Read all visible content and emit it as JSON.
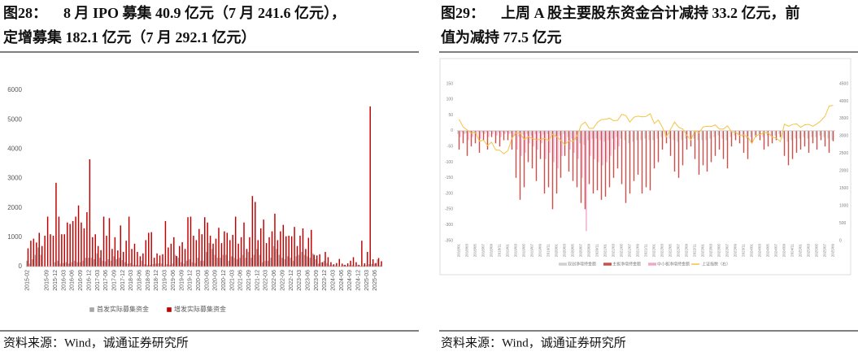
{
  "figures": [
    {
      "label": "图28：",
      "title_lines": [
        "8 月 IPO 募集 40.9 亿元（7 月 241.6 亿元），",
        "定增募集 182.1 亿元（7 月 292.1 亿元）"
      ],
      "source": "资料来源：Wind，诚通证券研究所"
    },
    {
      "label": "图29：",
      "title_lines": [
        "上周 A 股主要股东资金合计减持 33.2 亿元，前",
        "值为减持 77.5 亿元"
      ],
      "source": "资料来源：Wind，诚通证券研究所"
    }
  ],
  "chart_data": [
    {
      "type": "bar",
      "grid": false,
      "legend": "bottom",
      "categories": [
        "2015-02",
        null,
        null,
        null,
        null,
        null,
        null,
        "2015-09",
        null,
        null,
        "2015-12",
        null,
        null,
        "2016-03",
        null,
        null,
        "2016-06",
        null,
        null,
        "2016-09",
        null,
        null,
        "2016-12",
        null,
        null,
        "2017-03",
        null,
        null,
        "2017-06",
        null,
        null,
        "2017-09",
        null,
        null,
        "2017-12",
        null,
        null,
        "2018-03",
        null,
        null,
        "2018-06",
        null,
        null,
        "2018-09",
        null,
        null,
        "2018-12",
        null,
        null,
        "2019-03",
        null,
        null,
        "2019-06",
        null,
        null,
        "2019-09",
        null,
        null,
        "2019-12",
        null,
        null,
        "2020-03",
        null,
        null,
        "2020-06",
        null,
        null,
        "2020-09",
        null,
        null,
        "2020-12",
        null,
        null,
        "2021-03",
        null,
        null,
        "2021-06",
        null,
        null,
        "2021-09",
        null,
        null,
        "2021-12",
        null,
        null,
        "2022-03",
        null,
        null,
        "2022-06",
        null,
        null,
        "2022-09",
        null,
        null,
        "2022-12",
        null,
        null,
        "2023-03",
        null,
        null,
        "2023-06",
        null,
        null,
        "2023-09",
        null,
        null,
        "2023-12",
        null,
        null,
        "2024-03",
        null,
        null,
        "2024-06",
        null,
        null,
        "2024-09",
        null,
        null,
        "2024-12",
        null,
        null,
        "2025-03",
        null,
        null,
        "2025-06",
        null,
        null
      ],
      "series": [
        {
          "name": "首发实际募集资金",
          "color": "#a6a6a6",
          "values": [
            200,
            100,
            250,
            400,
            650,
            400,
            0,
            0,
            0,
            0,
            150,
            200,
            100,
            120,
            150,
            100,
            150,
            200,
            150,
            150,
            200,
            300,
            300,
            300,
            250,
            450,
            300,
            200,
            180,
            250,
            200,
            350,
            250,
            300,
            220,
            150,
            100,
            120,
            60,
            60,
            50,
            200,
            80,
            60,
            60,
            80,
            100,
            110,
            100,
            40,
            80,
            60,
            100,
            400,
            300,
            150,
            100,
            200,
            250,
            150,
            120,
            300,
            200,
            200,
            500,
            800,
            600,
            400,
            300,
            300,
            400,
            400,
            200,
            350,
            300,
            250,
            300,
            400,
            300,
            500,
            300,
            400,
            600,
            400,
            150,
            200,
            200,
            300,
            700,
            600,
            400,
            300,
            250,
            350,
            300,
            200,
            350,
            400,
            500,
            400,
            350,
            300,
            450,
            250,
            100,
            150,
            200,
            120,
            50,
            50,
            40,
            20,
            20,
            60,
            30,
            50,
            50,
            30,
            60,
            30,
            40,
            50,
            80,
            90,
            100,
            241.6,
            40.9
          ]
        },
        {
          "name": "增发实际募集资金",
          "color": "#c00000",
          "values": [
            620,
            880,
            950,
            820,
            1150,
            700,
            1050,
            1700,
            1100,
            1050,
            2850,
            1700,
            1100,
            1100,
            1500,
            1450,
            1550,
            1700,
            2080,
            1500,
            1300,
            1850,
            3650,
            1000,
            1100,
            700,
            560,
            1700,
            1050,
            1650,
            600,
            1000,
            550,
            1400,
            500,
            880,
            1700,
            600,
            780,
            500,
            350,
            450,
            900,
            1150,
            1170,
            300,
            450,
            380,
            420,
            1550,
            650,
            780,
            1000,
            360,
            700,
            830,
            600,
            1680,
            1700,
            1050,
            900,
            1280,
            1100,
            1680,
            1500,
            1050,
            780,
            950,
            1320,
            800,
            1200,
            1150,
            900,
            1080,
            1700,
            780,
            1000,
            1500,
            600,
            1000,
            2400,
            2200,
            900,
            1300,
            1600,
            800,
            1000,
            1200,
            1800,
            900,
            1200,
            1420,
            1030,
            1050,
            1030,
            1350,
            700,
            1050,
            1300,
            600,
            980,
            1250,
            400,
            380,
            420,
            150,
            500,
            320,
            150,
            80,
            120,
            260,
            100,
            60,
            110,
            200,
            320,
            150,
            60,
            880,
            110,
            500,
            5450,
            250,
            120,
            292.1,
            182.1
          ]
        }
      ],
      "ylim": [
        0,
        6000
      ],
      "yticks": [
        0,
        1000,
        2000,
        3000,
        4000,
        5000,
        6000
      ]
    },
    {
      "type": "combo",
      "grid": false,
      "legend": "bottom",
      "categories": [
        "2018/01",
        null,
        "2018/03",
        null,
        "2018/05",
        null,
        "2018/07",
        null,
        "2018/09",
        null,
        "2018/11",
        null,
        "2019/01",
        null,
        "2019/03",
        null,
        "2019/05",
        null,
        "2019/07",
        null,
        "2019/09",
        null,
        "2019/11",
        null,
        "2020/01",
        null,
        "2020/03",
        null,
        "2020/05",
        null,
        "2020/07",
        null,
        "2020/09",
        null,
        "2020/11",
        null,
        "2021/01",
        null,
        "2021/03",
        null,
        "2021/05",
        null,
        "2021/07",
        null,
        "2021/09",
        null,
        "2021/11",
        null,
        "2022/01",
        null,
        "2022/03",
        null,
        "2022/05",
        null,
        "2022/07",
        null,
        "2022/09",
        null,
        "2022/11",
        null,
        "2023/01",
        null,
        "2023/03",
        null,
        "2023/05",
        null,
        "2023/07",
        null,
        "2023/09",
        null,
        "2023/11",
        null,
        "2024/01",
        null,
        "2024/03",
        null,
        "2024/05",
        null,
        "2024/07",
        null,
        "2024/09",
        null,
        "2024/11",
        null,
        "2025/01",
        null,
        "2025/03",
        null,
        "2025/05",
        null,
        "2025/07",
        null,
        "2025/09"
      ],
      "series": [
        {
          "name": "双创净增持金额",
          "color": "#d0d0d0",
          "kind": "bar",
          "values": [
            -10,
            -5,
            -8,
            -6,
            -5,
            -4,
            -6,
            -5,
            -3,
            -4,
            -6,
            -5,
            -5,
            -8,
            -15,
            -20,
            -12,
            -10,
            -15,
            -10,
            -8,
            -12,
            -10,
            -15,
            -20,
            -15,
            -10,
            -20,
            -25,
            -30,
            -40,
            -45,
            -30,
            -25,
            -25,
            -30,
            -35,
            -30,
            -25,
            -20,
            -25,
            -30,
            -40,
            -35,
            -30,
            -30,
            -25,
            -30,
            -30,
            -25,
            -20,
            -20,
            -25,
            -30,
            -35,
            -30,
            -25,
            -20,
            -25,
            -30,
            -30,
            -30,
            -25,
            -20,
            -15,
            -25,
            -30,
            -20,
            -15,
            -15,
            -20,
            -25,
            -20,
            -15,
            -15,
            -20,
            -15,
            -15,
            -15,
            -10,
            -25,
            -35,
            -30,
            -25,
            -25,
            -20,
            -25,
            -20,
            -20,
            -15,
            -20,
            -25,
            -30
          ]
        },
        {
          "name": "主板净增持金额",
          "color": "#c9504b",
          "kind": "bar",
          "values": [
            -60,
            -40,
            -80,
            -50,
            -40,
            -70,
            -30,
            -60,
            -20,
            -40,
            -50,
            -30,
            -30,
            -60,
            -150,
            -220,
            -180,
            -100,
            -120,
            -160,
            -90,
            -200,
            -180,
            -250,
            -200,
            -150,
            -80,
            -130,
            -160,
            -180,
            -230,
            -250,
            -170,
            -200,
            -190,
            -220,
            -210,
            -180,
            -150,
            -120,
            -170,
            -230,
            -200,
            -160,
            -140,
            -200,
            -180,
            -190,
            -120,
            -100,
            -60,
            -40,
            -80,
            -130,
            -150,
            -110,
            -60,
            -50,
            -90,
            -140,
            -110,
            -130,
            -100,
            -80,
            -60,
            -90,
            -120,
            -50,
            -30,
            -40,
            -70,
            -90,
            -40,
            -20,
            -30,
            -60,
            -50,
            -40,
            -30,
            -20,
            -80,
            -110,
            -90,
            -70,
            -60,
            -50,
            -70,
            -40,
            -60,
            -30,
            -50,
            -70,
            -33.2
          ]
        },
        {
          "name": "中小板净增持金额",
          "color": "#f2a7c9",
          "kind": "bar",
          "values": [
            -20,
            -10,
            -30,
            -20,
            -15,
            -25,
            -10,
            -20,
            -10,
            -15,
            -20,
            -10,
            -10,
            -20,
            -60,
            -80,
            -70,
            -40,
            -50,
            -60,
            -40,
            -90,
            -70,
            -100,
            -120,
            -80,
            -40,
            -60,
            -70,
            -90,
            -150,
            -320,
            -80,
            -90,
            -100,
            -110,
            -100,
            -80,
            -60,
            -50,
            null,
            null,
            null,
            null,
            null,
            null,
            null,
            null,
            null,
            null,
            null,
            null,
            null,
            null,
            null,
            null,
            null,
            null,
            null,
            null,
            null,
            null,
            null,
            null,
            null,
            null,
            null,
            null,
            null,
            null,
            null,
            null,
            null,
            null,
            null,
            null,
            null,
            null,
            null,
            null,
            null,
            null,
            null,
            null,
            null,
            null,
            null,
            null,
            null,
            null,
            null,
            null,
            null
          ]
        },
        {
          "name": "上证指数（右）",
          "color": "#f5c342",
          "kind": "line",
          "axis": "y2",
          "values": [
            3480,
            3260,
            3170,
            3080,
            3100,
            2850,
            2880,
            2730,
            2820,
            2600,
            2590,
            2490,
            2580,
            2940,
            3090,
            3080,
            2900,
            2980,
            2930,
            2890,
            2900,
            2930,
            2870,
            3050,
            2980,
            2880,
            2750,
            2860,
            2850,
            3000,
            3310,
            3400,
            3220,
            3220,
            3390,
            3470,
            3480,
            3510,
            3440,
            3450,
            3620,
            3590,
            3400,
            3540,
            3570,
            3550,
            3560,
            3640,
            3360,
            3460,
            3250,
            2980,
            3190,
            3400,
            3250,
            3200,
            3020,
            2890,
            3150,
            3090,
            3260,
            3280,
            3270,
            3320,
            3200,
            3200,
            3290,
            3120,
            3110,
            3020,
            3030,
            2975,
            2790,
            3015,
            3040,
            3100,
            3090,
            2970,
            2940,
            2840,
            3340,
            3280,
            3330,
            3350,
            3250,
            3320,
            3335,
            3280,
            3350,
            3440,
            3570,
            3860,
            3880
          ]
        }
      ],
      "ylim": [
        -350,
        150
      ],
      "yticks": [
        -350,
        -300,
        -250,
        -200,
        -150,
        -100,
        -50,
        0,
        50,
        100,
        150
      ],
      "y2lim": [
        0,
        4500
      ],
      "y2ticks": [
        0,
        500,
        1000,
        1500,
        2000,
        2500,
        3000,
        3500,
        4000,
        4500
      ]
    }
  ]
}
